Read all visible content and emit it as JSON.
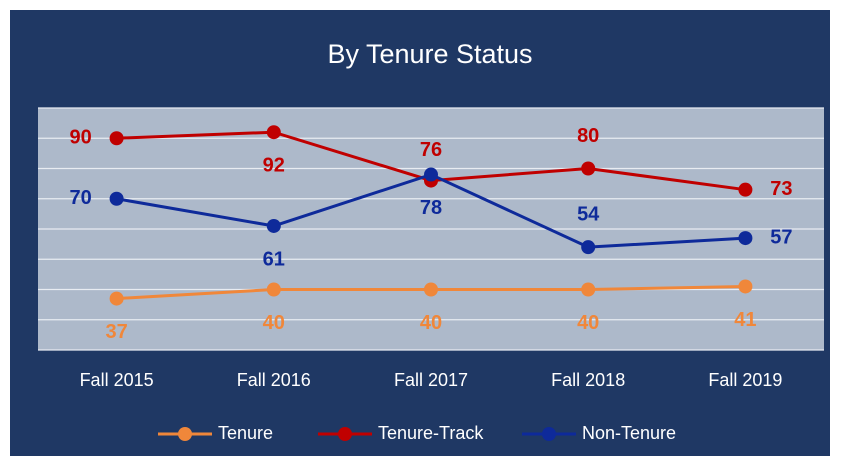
{
  "chart_data": {
    "type": "line",
    "title": "By Tenure Status",
    "categories": [
      "Fall 2015",
      "Fall 2016",
      "Fall 2017",
      "Fall 2018",
      "Fall 2019"
    ],
    "series": [
      {
        "name": "Tenure",
        "color": "#f0873a",
        "values": [
          37,
          40,
          40,
          40,
          41
        ]
      },
      {
        "name": "Tenure-Track",
        "color": "#c00000",
        "values": [
          90,
          92,
          76,
          80,
          73
        ]
      },
      {
        "name": "Non-Tenure",
        "color": "#0e2a9a",
        "values": [
          70,
          61,
          78,
          54,
          57
        ]
      }
    ],
    "ylim": [
      20,
      100
    ],
    "yticks": [
      20,
      30,
      40,
      50,
      60,
      70,
      80,
      90,
      100
    ],
    "grid": true,
    "legend": "bottom"
  }
}
